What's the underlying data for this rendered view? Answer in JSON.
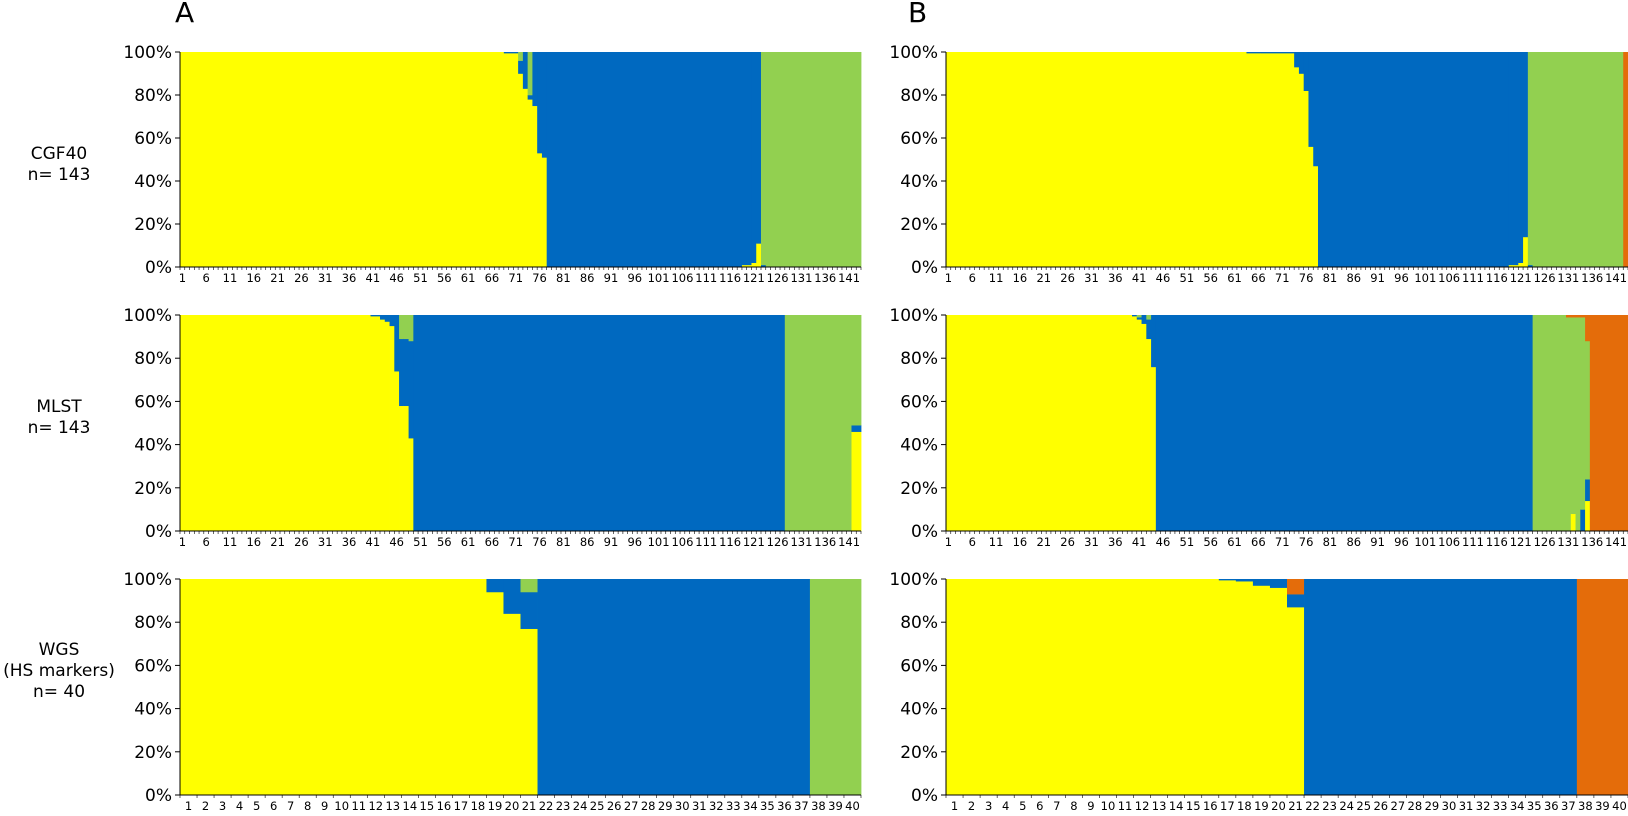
{
  "panels": [
    "A",
    "B"
  ],
  "rows": [
    {
      "line1": "CGF40",
      "line2": "n= 143",
      "line3": ""
    },
    {
      "line1": "MLST",
      "line2": "n= 143",
      "line3": ""
    },
    {
      "line1": "WGS",
      "line2": "(HS markers)",
      "line3": "n= 40"
    }
  ],
  "chart_data": [
    {
      "type": "bar",
      "stacked": true,
      "panel": "A",
      "row": "CGF40",
      "n": 143,
      "y_ticks": [
        "0%",
        "20%",
        "40%",
        "60%",
        "80%",
        "100%"
      ],
      "ylim": [
        0,
        100
      ],
      "x_tick_labels": [
        "1",
        "6",
        "11",
        "16",
        "21",
        "26",
        "31",
        "36",
        "41",
        "46",
        "51",
        "56",
        "61",
        "66",
        "71",
        "76",
        "81",
        "86",
        "91",
        "96",
        "101",
        "106",
        "111",
        "116",
        "121",
        "126",
        "131",
        "136",
        "141"
      ],
      "series_colors": [
        "#ffff00",
        "#0069c0",
        "#92d050",
        "#e46c0a"
      ],
      "segments": [
        {
          "from": 1,
          "to": 68,
          "values": [
            100,
            0,
            0,
            0
          ]
        },
        {
          "from": 69,
          "to": 71,
          "values": [
            99.5,
            0.5,
            0,
            0
          ]
        },
        {
          "from": 72,
          "to": 72,
          "values": [
            90,
            6,
            4,
            0
          ]
        },
        {
          "from": 73,
          "to": 73,
          "values": [
            83,
            17,
            0,
            0
          ]
        },
        {
          "from": 74,
          "to": 74,
          "values": [
            78,
            2,
            20,
            0
          ]
        },
        {
          "from": 75,
          "to": 75,
          "values": [
            75,
            25,
            0,
            0
          ]
        },
        {
          "from": 76,
          "to": 76,
          "values": [
            53,
            47,
            0,
            0
          ]
        },
        {
          "from": 77,
          "to": 77,
          "values": [
            51,
            49,
            0,
            0
          ]
        },
        {
          "from": 78,
          "to": 118,
          "values": [
            0,
            100,
            0,
            0
          ]
        },
        {
          "from": 119,
          "to": 120,
          "values": [
            1,
            99,
            0,
            0
          ]
        },
        {
          "from": 121,
          "to": 121,
          "values": [
            2,
            98,
            0,
            0
          ]
        },
        {
          "from": 122,
          "to": 122,
          "values": [
            11,
            89,
            0,
            0
          ]
        },
        {
          "from": 123,
          "to": 123,
          "values": [
            0,
            1,
            99,
            0
          ]
        },
        {
          "from": 124,
          "to": 143,
          "values": [
            0,
            0,
            100,
            0
          ]
        }
      ]
    },
    {
      "type": "bar",
      "stacked": true,
      "panel": "B",
      "row": "CGF40",
      "n": 143,
      "y_ticks": [
        "0%",
        "20%",
        "40%",
        "60%",
        "80%",
        "100%"
      ],
      "ylim": [
        0,
        100
      ],
      "x_tick_labels": [
        "1",
        "6",
        "11",
        "16",
        "21",
        "26",
        "31",
        "36",
        "41",
        "46",
        "51",
        "56",
        "61",
        "66",
        "71",
        "76",
        "81",
        "86",
        "91",
        "96",
        "101",
        "106",
        "111",
        "116",
        "121",
        "126",
        "131",
        "136",
        "141"
      ],
      "series_colors": [
        "#ffff00",
        "#0069c0",
        "#92d050",
        "#e46c0a"
      ],
      "segments": [
        {
          "from": 1,
          "to": 63,
          "values": [
            100,
            0,
            0,
            0
          ]
        },
        {
          "from": 64,
          "to": 66,
          "values": [
            99.5,
            0.5,
            0,
            0
          ]
        },
        {
          "from": 67,
          "to": 73,
          "values": [
            99.5,
            0.5,
            0,
            0
          ]
        },
        {
          "from": 74,
          "to": 74,
          "values": [
            93,
            7,
            0,
            0
          ]
        },
        {
          "from": 75,
          "to": 75,
          "values": [
            90,
            10,
            0,
            0
          ]
        },
        {
          "from": 76,
          "to": 76,
          "values": [
            82,
            18,
            0,
            0
          ]
        },
        {
          "from": 77,
          "to": 77,
          "values": [
            56,
            44,
            0,
            0
          ]
        },
        {
          "from": 78,
          "to": 78,
          "values": [
            47,
            53,
            0,
            0
          ]
        },
        {
          "from": 79,
          "to": 118,
          "values": [
            0,
            100,
            0,
            0
          ]
        },
        {
          "from": 119,
          "to": 120,
          "values": [
            1,
            99,
            0,
            0
          ]
        },
        {
          "from": 121,
          "to": 121,
          "values": [
            2,
            98,
            0,
            0
          ]
        },
        {
          "from": 122,
          "to": 122,
          "values": [
            14,
            86,
            0,
            0
          ]
        },
        {
          "from": 123,
          "to": 123,
          "values": [
            0,
            1,
            99,
            0
          ]
        },
        {
          "from": 124,
          "to": 142,
          "values": [
            0,
            0,
            100,
            0
          ]
        },
        {
          "from": 143,
          "to": 143,
          "values": [
            0,
            0,
            0,
            100
          ]
        }
      ]
    },
    {
      "type": "bar",
      "stacked": true,
      "panel": "A",
      "row": "MLST",
      "n": 143,
      "y_ticks": [
        "0%",
        "20%",
        "40%",
        "60%",
        "80%",
        "100%"
      ],
      "ylim": [
        0,
        100
      ],
      "x_tick_labels": [
        "1",
        "6",
        "11",
        "16",
        "21",
        "26",
        "31",
        "36",
        "41",
        "46",
        "51",
        "56",
        "61",
        "66",
        "71",
        "76",
        "81",
        "86",
        "91",
        "96",
        "101",
        "106",
        "111",
        "116",
        "121",
        "126",
        "131",
        "136",
        "141"
      ],
      "series_colors": [
        "#ffff00",
        "#0069c0",
        "#92d050",
        "#e46c0a"
      ],
      "segments": [
        {
          "from": 1,
          "to": 40,
          "values": [
            100,
            0,
            0,
            0
          ]
        },
        {
          "from": 41,
          "to": 42,
          "values": [
            99.5,
            0.5,
            0,
            0
          ]
        },
        {
          "from": 43,
          "to": 43,
          "values": [
            98,
            2,
            0,
            0
          ]
        },
        {
          "from": 44,
          "to": 44,
          "values": [
            97,
            3,
            0,
            0
          ]
        },
        {
          "from": 45,
          "to": 45,
          "values": [
            95,
            5,
            0,
            0
          ]
        },
        {
          "from": 46,
          "to": 46,
          "values": [
            74,
            26,
            0,
            0
          ]
        },
        {
          "from": 47,
          "to": 47,
          "values": [
            58,
            31,
            11,
            0
          ]
        },
        {
          "from": 48,
          "to": 48,
          "values": [
            58,
            31,
            11,
            0
          ]
        },
        {
          "from": 49,
          "to": 49,
          "values": [
            43,
            45,
            12,
            0
          ]
        },
        {
          "from": 50,
          "to": 127,
          "values": [
            0,
            100,
            0,
            0
          ]
        },
        {
          "from": 128,
          "to": 141,
          "values": [
            0,
            0,
            100,
            0
          ]
        },
        {
          "from": 142,
          "to": 143,
          "values": [
            46,
            3,
            51,
            0
          ]
        }
      ]
    },
    {
      "type": "bar",
      "stacked": true,
      "panel": "B",
      "row": "MLST",
      "n": 143,
      "y_ticks": [
        "0%",
        "20%",
        "40%",
        "60%",
        "80%",
        "100%"
      ],
      "ylim": [
        0,
        100
      ],
      "x_tick_labels": [
        "1",
        "6",
        "11",
        "16",
        "21",
        "26",
        "31",
        "36",
        "41",
        "46",
        "51",
        "56",
        "61",
        "66",
        "71",
        "76",
        "81",
        "86",
        "91",
        "96",
        "101",
        "106",
        "111",
        "116",
        "121",
        "126",
        "131",
        "136",
        "141"
      ],
      "series_colors": [
        "#ffff00",
        "#0069c0",
        "#92d050",
        "#e46c0a"
      ],
      "segments": [
        {
          "from": 1,
          "to": 39,
          "values": [
            100,
            0,
            0,
            0
          ]
        },
        {
          "from": 40,
          "to": 40,
          "values": [
            99.5,
            0.5,
            0,
            0
          ]
        },
        {
          "from": 41,
          "to": 41,
          "values": [
            98,
            1,
            1,
            0
          ]
        },
        {
          "from": 42,
          "to": 42,
          "values": [
            96,
            4,
            0,
            0
          ]
        },
        {
          "from": 43,
          "to": 43,
          "values": [
            89,
            9,
            2,
            0
          ]
        },
        {
          "from": 44,
          "to": 44,
          "values": [
            76,
            24,
            0,
            0
          ]
        },
        {
          "from": 45,
          "to": 123,
          "values": [
            0,
            100,
            0,
            0
          ]
        },
        {
          "from": 124,
          "to": 130,
          "values": [
            0,
            0,
            100,
            0
          ]
        },
        {
          "from": 131,
          "to": 131,
          "values": [
            0,
            0,
            99,
            1
          ]
        },
        {
          "from": 132,
          "to": 132,
          "values": [
            8,
            0,
            91,
            1
          ]
        },
        {
          "from": 133,
          "to": 133,
          "values": [
            0,
            0,
            99,
            1
          ]
        },
        {
          "from": 134,
          "to": 134,
          "values": [
            0,
            10,
            89,
            1
          ]
        },
        {
          "from": 135,
          "to": 135,
          "values": [
            14,
            10,
            64,
            12
          ]
        },
        {
          "from": 136,
          "to": 143,
          "values": [
            0,
            0,
            0,
            100
          ]
        }
      ]
    },
    {
      "type": "bar",
      "stacked": true,
      "panel": "A",
      "row": "WGS",
      "n": 40,
      "y_ticks": [
        "0%",
        "20%",
        "40%",
        "60%",
        "80%",
        "100%"
      ],
      "ylim": [
        0,
        100
      ],
      "x_tick_labels": [
        "1",
        "2",
        "3",
        "4",
        "5",
        "6",
        "7",
        "8",
        "9",
        "10",
        "11",
        "12",
        "13",
        "14",
        "15",
        "16",
        "17",
        "18",
        "19",
        "20",
        "21",
        "22",
        "23",
        "24",
        "25",
        "26",
        "27",
        "28",
        "29",
        "30",
        "31",
        "32",
        "33",
        "34",
        "35",
        "36",
        "37",
        "38",
        "39",
        "40"
      ],
      "series_colors": [
        "#ffff00",
        "#0069c0",
        "#92d050",
        "#e46c0a"
      ],
      "segments": [
        {
          "from": 1,
          "to": 18,
          "values": [
            100,
            0,
            0,
            0
          ]
        },
        {
          "from": 19,
          "to": 19,
          "values": [
            94,
            6,
            0,
            0
          ]
        },
        {
          "from": 20,
          "to": 20,
          "values": [
            84,
            16,
            0,
            0
          ]
        },
        {
          "from": 21,
          "to": 21,
          "values": [
            77,
            17,
            6,
            0
          ]
        },
        {
          "from": 22,
          "to": 37,
          "values": [
            0,
            100,
            0,
            0
          ]
        },
        {
          "from": 38,
          "to": 40,
          "values": [
            0,
            0,
            100,
            0
          ]
        }
      ]
    },
    {
      "type": "bar",
      "stacked": true,
      "panel": "B",
      "row": "WGS",
      "n": 40,
      "y_ticks": [
        "0%",
        "20%",
        "40%",
        "60%",
        "80%",
        "100%"
      ],
      "ylim": [
        0,
        100
      ],
      "x_tick_labels": [
        "1",
        "2",
        "3",
        "4",
        "5",
        "6",
        "7",
        "8",
        "9",
        "10",
        "11",
        "12",
        "13",
        "14",
        "15",
        "16",
        "17",
        "18",
        "19",
        "20",
        "21",
        "22",
        "23",
        "24",
        "25",
        "26",
        "27",
        "28",
        "29",
        "30",
        "31",
        "32",
        "33",
        "34",
        "35",
        "36",
        "37",
        "38",
        "39",
        "40"
      ],
      "series_colors": [
        "#ffff00",
        "#0069c0",
        "#92d050",
        "#e46c0a"
      ],
      "segments": [
        {
          "from": 1,
          "to": 16,
          "values": [
            100,
            0,
            0,
            0
          ]
        },
        {
          "from": 17,
          "to": 17,
          "values": [
            99.5,
            0.5,
            0,
            0
          ]
        },
        {
          "from": 18,
          "to": 18,
          "values": [
            99,
            1,
            0,
            0
          ]
        },
        {
          "from": 19,
          "to": 19,
          "values": [
            97,
            3,
            0,
            0
          ]
        },
        {
          "from": 20,
          "to": 20,
          "values": [
            96,
            4,
            0,
            0
          ]
        },
        {
          "from": 21,
          "to": 21,
          "values": [
            87,
            6,
            0,
            7
          ]
        },
        {
          "from": 22,
          "to": 37,
          "values": [
            0,
            100,
            0,
            0
          ]
        },
        {
          "from": 38,
          "to": 40,
          "values": [
            0,
            0,
            0,
            100
          ]
        }
      ]
    }
  ]
}
